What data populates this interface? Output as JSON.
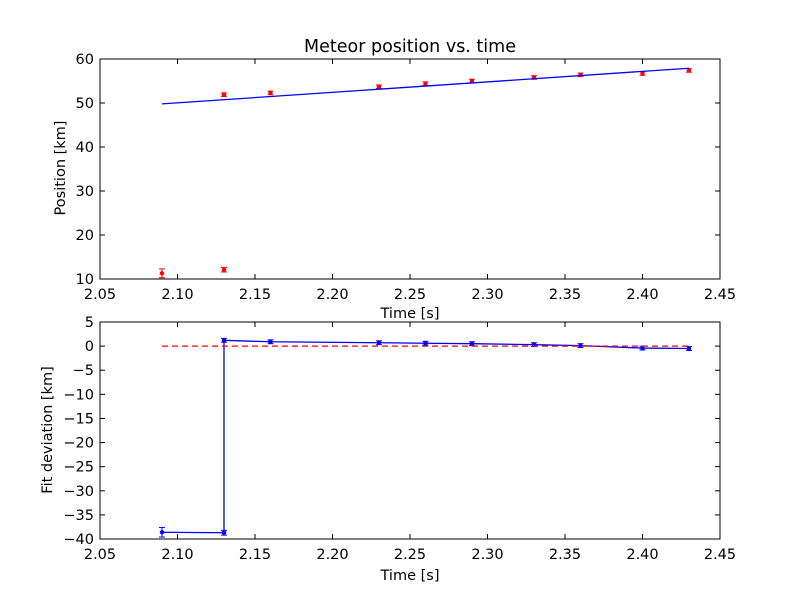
{
  "chart_data": [
    {
      "type": "scatter",
      "title": "Meteor position vs. time",
      "xlabel": "Time [s]",
      "ylabel": "Position [km]",
      "xlim": [
        2.05,
        2.45
      ],
      "ylim": [
        10,
        60
      ],
      "xticks": [
        "2.05",
        "2.10",
        "2.15",
        "2.20",
        "2.25",
        "2.30",
        "2.35",
        "2.40",
        "2.45"
      ],
      "yticks": [
        "10",
        "20",
        "30",
        "40",
        "50",
        "60"
      ],
      "grid": false,
      "series": [
        {
          "kind": "errorbar-points",
          "color": "#ff0000",
          "x": [
            2.09,
            2.13,
            2.13,
            2.16,
            2.23,
            2.26,
            2.29,
            2.33,
            2.36,
            2.4,
            2.43
          ],
          "y": [
            11.3,
            51.9,
            12.1,
            52.3,
            53.7,
            54.4,
            55.0,
            55.8,
            56.4,
            56.7,
            57.4
          ],
          "err": [
            1.0,
            0.4,
            0.5,
            0.4,
            0.4,
            0.4,
            0.4,
            0.4,
            0.4,
            0.4,
            0.4
          ]
        },
        {
          "kind": "line",
          "color": "#0000ff",
          "x": [
            2.09,
            2.43
          ],
          "y": [
            49.8,
            57.9
          ]
        }
      ]
    },
    {
      "type": "line",
      "title": "",
      "xlabel": "Time [s]",
      "ylabel": "Fit deviation [km]",
      "xlim": [
        2.05,
        2.45
      ],
      "ylim": [
        -40,
        5
      ],
      "xticks": [
        "2.05",
        "2.10",
        "2.15",
        "2.20",
        "2.25",
        "2.30",
        "2.35",
        "2.40",
        "2.45"
      ],
      "yticks": [
        "5",
        "0",
        "−5",
        "−10",
        "−15",
        "−20",
        "−25",
        "−30",
        "−35",
        "−40"
      ],
      "grid": false,
      "series": [
        {
          "kind": "errorbar-line",
          "color": "#0000ff",
          "x": [
            2.09,
            2.13,
            2.13,
            2.16,
            2.23,
            2.26,
            2.29,
            2.33,
            2.36,
            2.4,
            2.43
          ],
          "y": [
            -38.6,
            -38.7,
            1.2,
            0.9,
            0.7,
            0.6,
            0.5,
            0.3,
            0.1,
            -0.4,
            -0.5
          ],
          "err": [
            1.0,
            0.5,
            0.4,
            0.4,
            0.4,
            0.4,
            0.4,
            0.4,
            0.4,
            0.4,
            0.4
          ]
        },
        {
          "kind": "dashed-line",
          "color": "#ff0000",
          "x": [
            2.09,
            2.43
          ],
          "y": [
            0,
            0
          ]
        }
      ]
    }
  ]
}
